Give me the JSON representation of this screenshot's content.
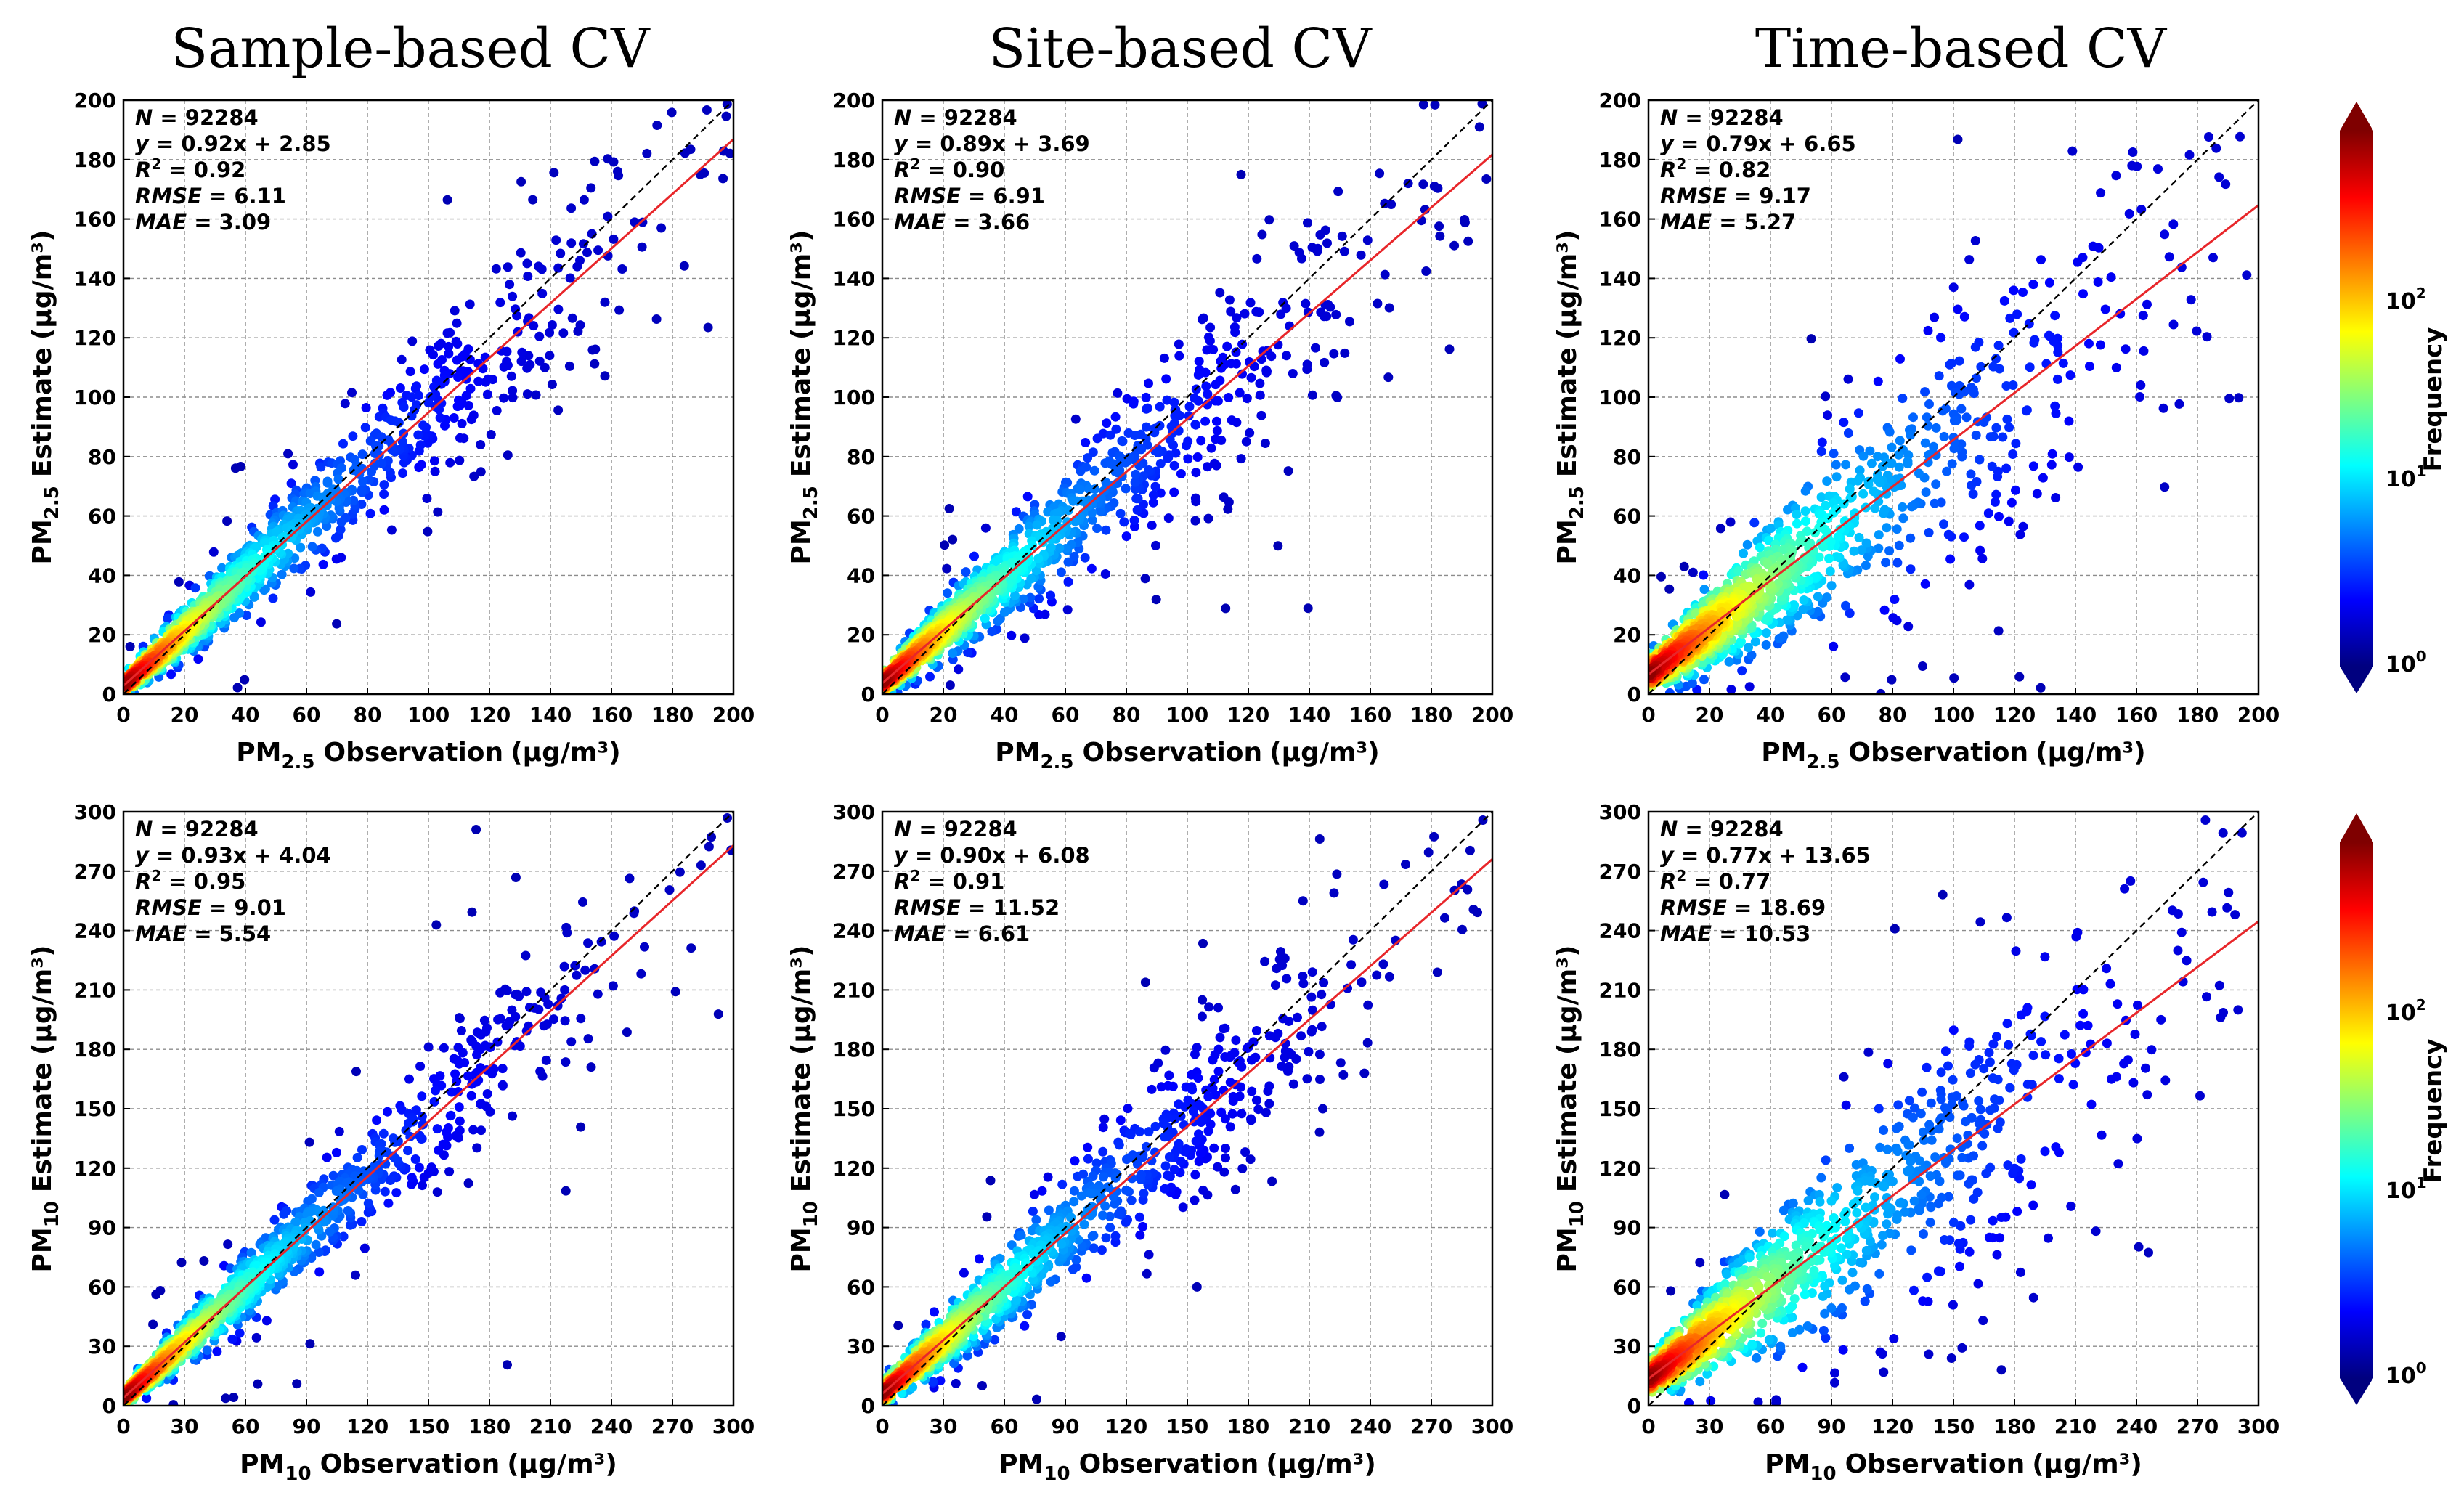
{
  "titles": {
    "sample": "Sample-based CV",
    "site": "Site-based CV",
    "time": "Time-based CV"
  },
  "units": "(μg/m³)",
  "label_words": {
    "estimate": "Estimate",
    "observation": "Observation"
  },
  "colorbar": {
    "label": "Frequency",
    "base": "10",
    "exponents": [
      "0",
      "1",
      "2"
    ],
    "colors": [
      "#00007f",
      "#0000ff",
      "#007fff",
      "#00ffff",
      "#7fff7f",
      "#ffff00",
      "#ff7f00",
      "#ff0000",
      "#7f0000"
    ]
  },
  "chart_data": [
    {
      "type": "scatter",
      "panel": "pm25-sample",
      "pollutant_base": "PM",
      "pollutant_sub": "2.5",
      "xlim": [
        0,
        200
      ],
      "ylim": [
        0,
        200
      ],
      "ticks": [
        0,
        20,
        40,
        60,
        80,
        100,
        120,
        140,
        160,
        180,
        200
      ],
      "stats": {
        "N": "92284",
        "eq": "0.92x + 2.85",
        "R2": "0.92",
        "RMSE": "6.11",
        "MAE": "3.09"
      },
      "slope": 0.92,
      "intercept": 2.85,
      "spread": 0.2,
      "spread_base": 3,
      "density_scale": 1.0
    },
    {
      "type": "scatter",
      "panel": "pm25-site",
      "pollutant_base": "PM",
      "pollutant_sub": "2.5",
      "xlim": [
        0,
        200
      ],
      "ylim": [
        0,
        200
      ],
      "ticks": [
        0,
        20,
        40,
        60,
        80,
        100,
        120,
        140,
        160,
        180,
        200
      ],
      "stats": {
        "N": "92284",
        "eq": "0.89x + 3.69",
        "R2": "0.90",
        "RMSE": "6.91",
        "MAE": "3.66"
      },
      "slope": 0.89,
      "intercept": 3.69,
      "spread": 0.23,
      "spread_base": 3.5,
      "density_scale": 1.0
    },
    {
      "type": "scatter",
      "panel": "pm25-time",
      "pollutant_base": "PM",
      "pollutant_sub": "2.5",
      "xlim": [
        0,
        200
      ],
      "ylim": [
        0,
        200
      ],
      "ticks": [
        0,
        20,
        40,
        60,
        80,
        100,
        120,
        140,
        160,
        180,
        200
      ],
      "stats": {
        "N": "92284",
        "eq": "0.79x + 6.65",
        "R2": "0.82",
        "RMSE": "9.17",
        "MAE": "5.27"
      },
      "slope": 0.79,
      "intercept": 6.65,
      "spread": 0.33,
      "spread_base": 5,
      "density_scale": 1.3
    },
    {
      "type": "scatter",
      "panel": "pm10-sample",
      "pollutant_base": "PM",
      "pollutant_sub": "10",
      "xlim": [
        0,
        300
      ],
      "ylim": [
        0,
        300
      ],
      "ticks": [
        0,
        30,
        60,
        90,
        120,
        150,
        180,
        210,
        240,
        270,
        300
      ],
      "stats": {
        "N": "92284",
        "eq": "0.93x + 4.04",
        "R2": "0.95",
        "RMSE": "9.01",
        "MAE": "5.54"
      },
      "slope": 0.93,
      "intercept": 4.04,
      "spread": 0.18,
      "spread_base": 4,
      "density_scale": 1.0
    },
    {
      "type": "scatter",
      "panel": "pm10-site",
      "pollutant_base": "PM",
      "pollutant_sub": "10",
      "xlim": [
        0,
        300
      ],
      "ylim": [
        0,
        300
      ],
      "ticks": [
        0,
        30,
        60,
        90,
        120,
        150,
        180,
        210,
        240,
        270,
        300
      ],
      "stats": {
        "N": "92284",
        "eq": "0.90x + 6.08",
        "R2": "0.91",
        "RMSE": "11.52",
        "MAE": "6.61"
      },
      "slope": 0.9,
      "intercept": 6.08,
      "spread": 0.22,
      "spread_base": 5,
      "density_scale": 1.0
    },
    {
      "type": "scatter",
      "panel": "pm10-time",
      "pollutant_base": "PM",
      "pollutant_sub": "10",
      "xlim": [
        0,
        300
      ],
      "ylim": [
        0,
        300
      ],
      "ticks": [
        0,
        30,
        60,
        90,
        120,
        150,
        180,
        210,
        240,
        270,
        300
      ],
      "stats": {
        "N": "92284",
        "eq": "0.77x + 13.65",
        "R2": "0.77",
        "RMSE": "18.69",
        "MAE": "10.53"
      },
      "slope": 0.77,
      "intercept": 13.65,
      "spread": 0.34,
      "spread_base": 8,
      "density_scale": 1.3
    }
  ]
}
